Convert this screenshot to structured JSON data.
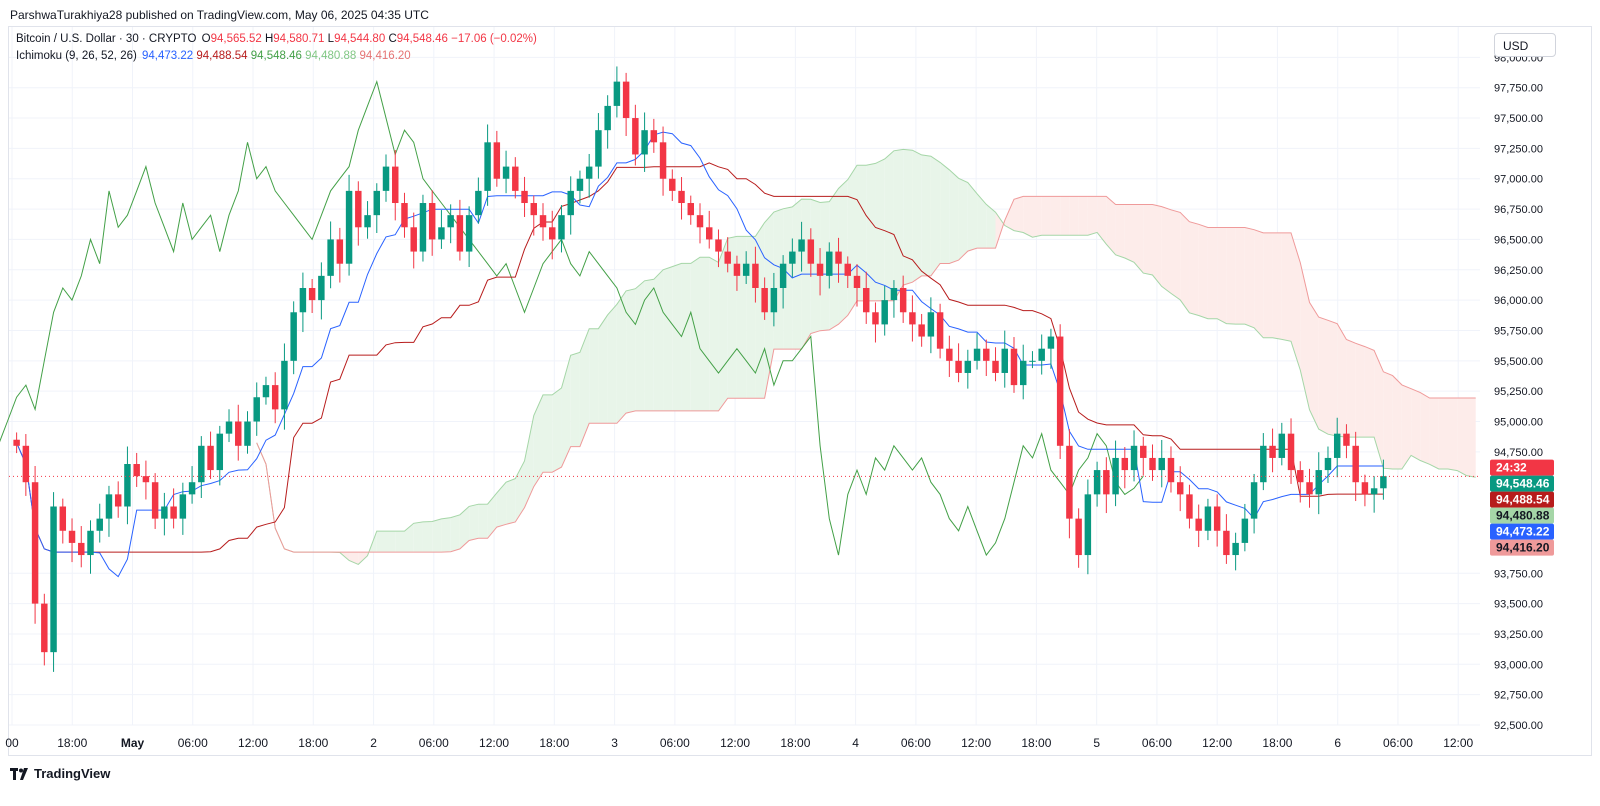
{
  "header": {
    "publisher": "ParshwaTurakhiya28 published on TradingView.com, May 06, 2025 04:35 UTC"
  },
  "legend": {
    "symbol": "Bitcoin / U.S. Dollar · 30 · CRYPTO",
    "open_label": "O",
    "open": "94,565.52",
    "high_label": "H",
    "high": "94,580.71",
    "low_label": "L",
    "low": "94,544.80",
    "close_label": "C",
    "close": "94,548.46",
    "change": "−17.06 (−0.02%)",
    "indicator": "Ichimoku (9, 26, 52, 26)",
    "ind_v1": "94,473.22",
    "ind_v2": "94,488.54",
    "ind_v3": "94,548.46",
    "ind_v4": "94,480.88",
    "ind_v5": "94,416.20"
  },
  "currency": "USD",
  "brand": "TradingView",
  "colors": {
    "up": "#089981",
    "down": "#f23645",
    "tenkan": "#2962ff",
    "kijun": "#b71c1c",
    "chikou": "#43a047",
    "span_a": "#a5d6a7",
    "span_b": "#ef9a9a",
    "cloud_bull": "#e8f5e9",
    "cloud_bear": "#fdecea"
  },
  "chart_data": {
    "type": "candlestick",
    "symbol": "Bitcoin / U.S. Dollar",
    "interval": "30",
    "y_ticks": [
      "98,000.00",
      "97,750.00",
      "97,500.00",
      "97,250.00",
      "97,000.00",
      "96,750.00",
      "96,500.00",
      "96,250.00",
      "96,000.00",
      "95,750.00",
      "95,500.00",
      "95,250.00",
      "95,000.00",
      "94,750.00",
      "93,750.00",
      "93,500.00",
      "93,250.00",
      "93,000.00",
      "92,750.00",
      "92,500.00"
    ],
    "y_tick_values": [
      98000,
      97750,
      97500,
      97250,
      97000,
      96750,
      96500,
      96250,
      96000,
      95750,
      95500,
      95250,
      95000,
      94750,
      93750,
      93500,
      93250,
      93000,
      92750,
      92500
    ],
    "ylim": [
      92500,
      98250
    ],
    "x_ticks": [
      "00",
      "18:00",
      "May",
      "06:00",
      "12:00",
      "18:00",
      "2",
      "06:00",
      "12:00",
      "18:00",
      "3",
      "06:00",
      "12:00",
      "18:00",
      "4",
      "06:00",
      "12:00",
      "18:00",
      "5",
      "06:00",
      "12:00",
      "18:00",
      "6",
      "06:00",
      "12:00"
    ],
    "x_tick_bold": [
      "May"
    ],
    "price_labels": [
      {
        "text": "24:32",
        "value": 94620,
        "color": "#f23645"
      },
      {
        "text": "94,548.46",
        "value": 94548.46,
        "color": "#089981"
      },
      {
        "text": "94,488.54",
        "value": 94488.54,
        "color": "#b71c1c"
      },
      {
        "text": "94,480.88",
        "value": 94480.88,
        "color": "#a5d6a7"
      },
      {
        "text": "94,473.22",
        "value": 94473.22,
        "color": "#2962ff"
      },
      {
        "text": "94,416.20",
        "value": 94416.2,
        "color": "#ef9a9a"
      }
    ],
    "last_price": 94548.46,
    "close_series": [
      94800,
      94500,
      93500,
      93100,
      94300,
      94100,
      94000,
      93900,
      94100,
      94200,
      94400,
      94300,
      94650,
      94550,
      94500,
      94200,
      94300,
      94200,
      94400,
      94500,
      94800,
      94600,
      94900,
      95000,
      94800,
      95000,
      95200,
      95300,
      95100,
      95500,
      95900,
      96100,
      96000,
      96200,
      96500,
      96300,
      96900,
      96600,
      96700,
      96900,
      97100,
      96800,
      96600,
      96400,
      96800,
      96500,
      96600,
      96700,
      96400,
      96700,
      96900,
      97300,
      97000,
      97100,
      96900,
      96800,
      96700,
      96600,
      96500,
      96700,
      96900,
      97000,
      97100,
      97400,
      97600,
      97800,
      97500,
      97200,
      97400,
      97300,
      97000,
      96900,
      96800,
      96700,
      96600,
      96500,
      96400,
      96300,
      96200,
      96300,
      96100,
      95900,
      96100,
      96300,
      96400,
      96500,
      96300,
      96200,
      96400,
      96300,
      96200,
      96100,
      95900,
      95800,
      96000,
      96100,
      95900,
      95800,
      95700,
      95900,
      95600,
      95500,
      95400,
      95500,
      95600,
      95500,
      95400,
      95600,
      95300,
      95500,
      95500,
      95600,
      95700,
      94800,
      94200,
      93900,
      94400,
      94600,
      94400,
      94700,
      94600,
      94800,
      94700,
      94600,
      94700,
      94500,
      94400,
      94200,
      94100,
      94300,
      94100,
      93900,
      94000,
      94200,
      94500,
      94800,
      94700,
      94900,
      94600,
      94500,
      94400,
      94600,
      94700,
      94900,
      94800,
      94500,
      94400,
      94450,
      94550
    ]
  }
}
